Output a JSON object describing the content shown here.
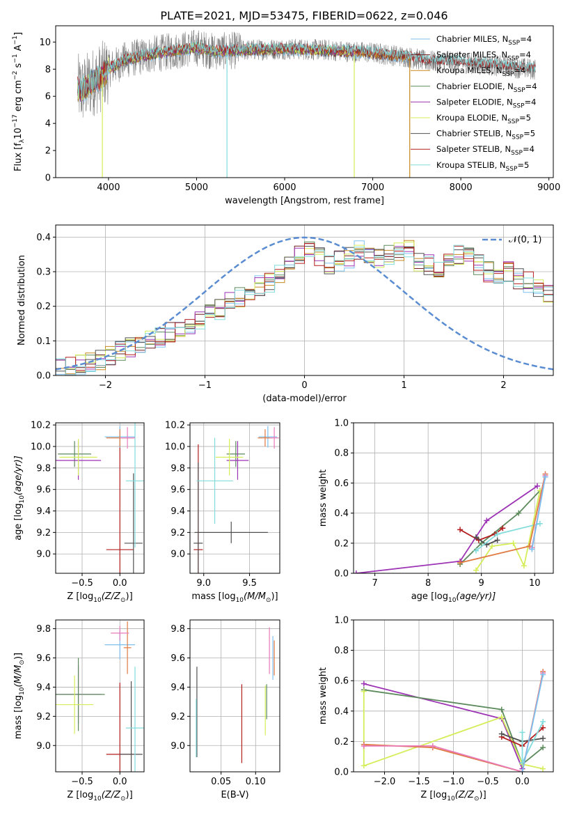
{
  "figure": {
    "title": "PLATE=2021, MJD=53475, FIBERID=0622, z=0.046"
  },
  "colors": {
    "Chabrier MILES": "#7bc0ef",
    "Salpeter MILES": "#6e1e1e",
    "Kroupa MILES": "#c8871e",
    "Chabrier ELODIE": "#5c8a5c",
    "Salpeter ELODIE": "#9c32b4",
    "Kroupa ELODIE": "#d4ee5a",
    "Chabrier STELIB": "#505050",
    "Salpeter STELIB": "#b41e1e",
    "Kroupa STELIB": "#82dcdc",
    "data": "#808080",
    "orange": "#e07a40",
    "pink": "#e87ab8",
    "normal": "#5a8cd2"
  },
  "chart_data": [
    {
      "id": "spectrum",
      "type": "line",
      "title": "PLATE=2021, MJD=53475, FIBERID=0622, z=0.046",
      "xlabel": "wavelength [Angstrom, rest frame]",
      "ylabel_parts": [
        "Flux [f",
        "λ",
        "10",
        "−17",
        " erg cm",
        "−2",
        " s",
        "−1",
        " A",
        "−1",
        "]"
      ],
      "xlim": [
        3400,
        9050
      ],
      "ylim": [
        0,
        11.2
      ],
      "xticks": [
        4000,
        5000,
        6000,
        7000,
        8000,
        9000
      ],
      "yticks": [
        0,
        2,
        4,
        6,
        8,
        10
      ],
      "grid": false,
      "legend_position": "upper-right",
      "legend": [
        {
          "label": "Chabrier MILES, N",
          "sub": "SSP",
          "suffix": "=4",
          "color_key": "Chabrier MILES"
        },
        {
          "label": "Salpeter MILES, N",
          "sub": "SSP",
          "suffix": "=4",
          "color_key": "Salpeter MILES"
        },
        {
          "label": "Kroupa MILES, N",
          "sub": "SSP",
          "suffix": "=4",
          "color_key": "Kroupa MILES"
        },
        {
          "label": "Chabrier ELODIE, N",
          "sub": "SSP",
          "suffix": "=4",
          "color_key": "Chabrier ELODIE"
        },
        {
          "label": "Salpeter ELODIE, N",
          "sub": "SSP",
          "suffix": "=4",
          "color_key": "Salpeter ELODIE"
        },
        {
          "label": "Kroupa ELODIE, N",
          "sub": "SSP",
          "suffix": "=5",
          "color_key": "Kroupa ELODIE"
        },
        {
          "label": "Chabrier STELIB, N",
          "sub": "SSP",
          "suffix": "=5",
          "color_key": "Chabrier STELIB"
        },
        {
          "label": "Salpeter STELIB, N",
          "sub": "SSP",
          "suffix": "=4",
          "color_key": "Salpeter STELIB"
        },
        {
          "label": "Kroupa STELIB, N",
          "sub": "SSP",
          "suffix": "=5",
          "color_key": "Kroupa STELIB"
        }
      ],
      "continuum": [
        [
          3650,
          6.6
        ],
        [
          3700,
          6.4
        ],
        [
          3800,
          7.0
        ],
        [
          3900,
          7.3
        ],
        [
          4000,
          8.0
        ],
        [
          4200,
          8.7
        ],
        [
          4500,
          9.1
        ],
        [
          4800,
          9.4
        ],
        [
          5000,
          9.6
        ],
        [
          5200,
          9.3
        ],
        [
          5500,
          9.4
        ],
        [
          6000,
          9.5
        ],
        [
          6500,
          9.4
        ],
        [
          7000,
          9.2
        ],
        [
          7400,
          8.9
        ],
        [
          7600,
          8.6
        ],
        [
          8000,
          8.5
        ],
        [
          8500,
          8.2
        ],
        [
          8800,
          8.0
        ]
      ],
      "data_xrange": [
        3650,
        8850
      ],
      "model_xranges": {
        "MILES": [
          3650,
          7420
        ],
        "ELODIE": [
          3650,
          6800
        ],
        "STELIB": [
          3650,
          8850
        ]
      },
      "dips": [
        {
          "x": 3930,
          "y": 0.0,
          "color_key": "Kroupa ELODIE"
        },
        {
          "x": 5345,
          "y": 0.0,
          "color_key": "Kroupa STELIB"
        },
        {
          "x": 6790,
          "y": 0.0,
          "color_key": "Kroupa ELODIE"
        },
        {
          "x": 7420,
          "y": 0.0,
          "color_key": "Kroupa MILES"
        }
      ]
    },
    {
      "id": "residuals",
      "type": "histogram",
      "xlabel": "(data-model)/error",
      "ylabel": "Normed distribution",
      "xlim": [
        -2.5,
        2.5
      ],
      "ylim": [
        0,
        0.435
      ],
      "xticks": [
        -2,
        -1,
        0,
        1,
        2
      ],
      "yticks": [
        0.0,
        0.1,
        0.2,
        0.3,
        0.4
      ],
      "grid": true,
      "legend_position": "upper-right",
      "normal_label": "𝒩(0, 1)",
      "bin_width": 0.1,
      "bins_start": -2.5,
      "reference_bins": [
        0.02,
        0.025,
        0.03,
        0.035,
        0.045,
        0.06,
        0.07,
        0.08,
        0.09,
        0.1,
        0.11,
        0.125,
        0.14,
        0.15,
        0.16,
        0.175,
        0.19,
        0.21,
        0.225,
        0.24,
        0.26,
        0.27,
        0.29,
        0.33,
        0.35,
        0.36,
        0.34,
        0.32,
        0.33,
        0.34,
        0.36,
        0.35,
        0.34,
        0.35,
        0.36,
        0.37,
        0.33,
        0.32,
        0.31,
        0.33,
        0.35,
        0.34,
        0.32,
        0.3,
        0.29,
        0.3,
        0.28,
        0.27,
        0.25,
        0.24,
        0.22,
        0.2,
        0.185,
        0.17,
        0.16,
        0.15,
        0.14,
        0.12,
        0.11,
        0.1,
        0.09,
        0.08,
        0.075,
        0.065,
        0.055,
        0.05,
        0.045,
        0.04,
        0.035,
        0.03,
        0.025,
        0.02
      ],
      "series": [
        {
          "color_key": "Chabrier MILES"
        },
        {
          "color_key": "Salpeter MILES"
        },
        {
          "color_key": "Kroupa MILES"
        },
        {
          "color_key": "Chabrier ELODIE"
        },
        {
          "color_key": "Salpeter ELODIE"
        },
        {
          "color_key": "Kroupa ELODIE"
        },
        {
          "color_key": "Chabrier STELIB"
        },
        {
          "color_key": "Salpeter STELIB"
        },
        {
          "color_key": "Kroupa STELIB"
        }
      ]
    },
    {
      "id": "age_vs_Z",
      "type": "errorbar",
      "xlabel_parts": [
        "Z [log",
        "10",
        "(Z/Z",
        "⊙",
        ")]"
      ],
      "ylabel_parts": [
        "age  [log",
        "10",
        "(age/yr)]"
      ],
      "xlim": [
        -0.85,
        0.32
      ],
      "ylim": [
        8.82,
        10.22
      ],
      "xticks": [
        -0.5,
        0.0
      ],
      "yticks": [
        9.0,
        9.2,
        9.4,
        9.6,
        9.8,
        10.0,
        10.2
      ],
      "grid": true,
      "points": [
        {
          "x": -0.6,
          "y": 9.93,
          "xerr": 0.22,
          "yerr": 0.12,
          "color_key": "Chabrier ELODIE"
        },
        {
          "x": -0.55,
          "y": 9.87,
          "xerr": 0.3,
          "yerr": 0.18,
          "color_key": "Salpeter ELODIE"
        },
        {
          "x": -0.55,
          "y": 9.9,
          "xerr": 0.25,
          "yerr": 0.17,
          "color_key": "Kroupa ELODIE"
        },
        {
          "x": 0.0,
          "y": 9.04,
          "xerr": 0.18,
          "yerr": 0.98,
          "color_key": "Salpeter STELIB"
        },
        {
          "x": 0.18,
          "y": 9.1,
          "xerr": 0.12,
          "yerr": 0.65,
          "color_key": "Chabrier STELIB"
        },
        {
          "x": 0.2,
          "y": 9.68,
          "xerr": 0.12,
          "yerr": 0.62,
          "color_key": "Kroupa STELIB"
        },
        {
          "x": 0.0,
          "y": 10.09,
          "xerr": 0.2,
          "yerr": 0.1,
          "color_key": "Chabrier MILES"
        },
        {
          "x": 0.0,
          "y": 10.08,
          "xerr": 0.18,
          "yerr": 0.08,
          "color_key": "orange"
        },
        {
          "x": 0.1,
          "y": 10.08,
          "xerr": 0.1,
          "yerr": 0.1,
          "color_key": "pink"
        }
      ]
    },
    {
      "id": "age_vs_mass",
      "type": "errorbar",
      "xlabel_parts": [
        "mass [log",
        "10",
        "(M/M",
        "⊙",
        ")]"
      ],
      "xlim": [
        8.85,
        9.83
      ],
      "ylim": [
        8.82,
        10.22
      ],
      "xticks": [
        9.0,
        9.5
      ],
      "yticks": [
        9.0,
        9.2,
        9.4,
        9.6,
        9.8,
        10.0,
        10.2
      ],
      "grid": true,
      "points": [
        {
          "x": 9.35,
          "y": 9.93,
          "xerr": 0.1,
          "yerr": 0.12,
          "color_key": "Chabrier ELODIE"
        },
        {
          "x": 9.37,
          "y": 9.87,
          "xerr": 0.12,
          "yerr": 0.18,
          "color_key": "Salpeter ELODIE"
        },
        {
          "x": 9.28,
          "y": 9.9,
          "xerr": 0.15,
          "yerr": 0.17,
          "color_key": "Kroupa ELODIE"
        },
        {
          "x": 8.94,
          "y": 9.04,
          "xerr": 0.05,
          "yerr": 0.98,
          "color_key": "Salpeter STELIB"
        },
        {
          "x": 8.94,
          "y": 9.1,
          "xerr": 0.05,
          "yerr": 0.75,
          "color_key": "Chabrier STELIB"
        },
        {
          "x": 9.12,
          "y": 9.68,
          "xerr": 0.2,
          "yerr": 0.4,
          "color_key": "Kroupa STELIB"
        },
        {
          "x": 9.7,
          "y": 10.09,
          "xerr": 0.1,
          "yerr": 0.1,
          "color_key": "Chabrier MILES"
        },
        {
          "x": 9.67,
          "y": 10.08,
          "xerr": 0.08,
          "yerr": 0.08,
          "color_key": "orange"
        },
        {
          "x": 9.77,
          "y": 10.08,
          "xerr": 0.05,
          "yerr": 0.1,
          "color_key": "pink"
        },
        {
          "x": 9.3,
          "y": 9.2,
          "xerr": 0.4,
          "yerr": 0.1,
          "color_key": "Chabrier STELIB"
        }
      ]
    },
    {
      "id": "massweight_vs_age",
      "type": "line",
      "xlabel_parts": [
        "age  [log",
        "10",
        "(age/yr)]"
      ],
      "ylabel": "mass weight",
      "xlim": [
        6.6,
        10.35
      ],
      "ylim": [
        0,
        1.0
      ],
      "xticks": [
        7,
        8,
        9,
        10
      ],
      "yticks": [
        0.0,
        0.2,
        0.4,
        0.6,
        0.8,
        1.0
      ],
      "grid": true,
      "series": [
        {
          "color_key": "Salpeter ELODIE",
          "x": [
            6.65,
            8.6,
            9.1,
            10.05
          ],
          "y": [
            0.0,
            0.08,
            0.35,
            0.58
          ]
        },
        {
          "color_key": "Chabrier ELODIE",
          "x": [
            8.6,
            9.0,
            9.7,
            10.1
          ],
          "y": [
            0.06,
            0.2,
            0.4,
            0.55
          ]
        },
        {
          "color_key": "Kroupa ELODIE",
          "x": [
            8.9,
            9.2,
            9.6,
            9.8,
            10.1
          ],
          "y": [
            0.02,
            0.18,
            0.2,
            0.05,
            0.55
          ]
        },
        {
          "color_key": "Salpeter STELIB",
          "x": [
            8.6,
            8.95,
            9.25,
            9.4
          ],
          "y": [
            0.29,
            0.22,
            0.26,
            0.3
          ]
        },
        {
          "color_key": "Chabrier STELIB",
          "x": [
            8.9,
            9.1,
            9.3
          ],
          "y": [
            0.24,
            0.19,
            0.22
          ]
        },
        {
          "color_key": "Kroupa STELIB",
          "x": [
            8.9,
            9.3,
            10.1
          ],
          "y": [
            0.15,
            0.26,
            0.33
          ]
        },
        {
          "color_key": "orange",
          "x": [
            8.6,
            9.9,
            10.2
          ],
          "y": [
            0.07,
            0.18,
            0.66
          ]
        },
        {
          "color_key": "pink",
          "x": [
            9.95,
            10.2
          ],
          "y": [
            0.17,
            0.65
          ]
        },
        {
          "color_key": "Chabrier MILES",
          "x": [
            9.95,
            10.2
          ],
          "y": [
            0.16,
            0.64
          ]
        }
      ]
    },
    {
      "id": "mass_vs_Z",
      "type": "errorbar",
      "xlabel_parts": [
        "Z [log",
        "10",
        "(Z/Z",
        "⊙",
        ")]"
      ],
      "ylabel_parts": [
        "mass [log",
        "10",
        "(M/M",
        "⊙",
        ")]"
      ],
      "xlim": [
        -0.85,
        0.32
      ],
      "ylim": [
        8.82,
        9.86
      ],
      "xticks": [
        -0.5,
        0.0
      ],
      "yticks": [
        9.0,
        9.2,
        9.4,
        9.6,
        9.8
      ],
      "grid": true,
      "points": [
        {
          "x": -0.55,
          "y": 9.35,
          "xerr": 0.3,
          "yerr": 0.2,
          "color_key": "Salpeter ELODIE"
        },
        {
          "x": -0.55,
          "y": 9.35,
          "xerr": 0.35,
          "yerr": 0.25,
          "color_key": "Chabrier ELODIE"
        },
        {
          "x": -0.6,
          "y": 9.28,
          "xerr": 0.25,
          "yerr": 0.2,
          "color_key": "Kroupa ELODIE"
        },
        {
          "x": 0.0,
          "y": 8.94,
          "xerr": 0.18,
          "yerr": 0.49,
          "color_key": "Salpeter STELIB"
        },
        {
          "x": 0.15,
          "y": 8.94,
          "xerr": 0.15,
          "yerr": 0.5,
          "color_key": "Chabrier STELIB"
        },
        {
          "x": 0.2,
          "y": 9.12,
          "xerr": 0.12,
          "yerr": 0.42,
          "color_key": "Kroupa STELIB"
        },
        {
          "x": 0.0,
          "y": 9.69,
          "xerr": 0.2,
          "yerr": 0.1,
          "color_key": "Chabrier MILES"
        },
        {
          "x": 0.1,
          "y": 9.67,
          "xerr": 0.05,
          "yerr": 0.18,
          "color_key": "orange"
        },
        {
          "x": 0.0,
          "y": 9.77,
          "xerr": 0.12,
          "yerr": 0.05,
          "color_key": "pink"
        }
      ]
    },
    {
      "id": "mass_vs_EBV",
      "type": "errorbar",
      "xlabel": "E(B-V)",
      "xlim": [
        0.005,
        0.135
      ],
      "ylim": [
        8.82,
        9.86
      ],
      "xticks": [
        0.05,
        0.1
      ],
      "yticks": [
        9.0,
        9.2,
        9.4,
        9.6,
        9.8
      ],
      "grid": true,
      "points": [
        {
          "x": 0.015,
          "y": 9.23,
          "xerr": 0.0,
          "yerr": 0.31,
          "color_key": "Chabrier STELIB"
        },
        {
          "x": 0.014,
          "y": 9.12,
          "xerr": 0.0,
          "yerr": 0.2,
          "color_key": "Kroupa STELIB"
        },
        {
          "x": 0.08,
          "y": 9.15,
          "xerr": 0.0,
          "yerr": 0.27,
          "color_key": "Salpeter STELIB"
        },
        {
          "x": 0.114,
          "y": 9.24,
          "xerr": 0.0,
          "yerr": 0.17,
          "color_key": "Kroupa ELODIE"
        },
        {
          "x": 0.116,
          "y": 9.3,
          "xerr": 0.0,
          "yerr": 0.12,
          "color_key": "Chabrier ELODIE"
        },
        {
          "x": 0.12,
          "y": 9.65,
          "xerr": 0.0,
          "yerr": 0.16,
          "color_key": "pink"
        },
        {
          "x": 0.125,
          "y": 9.6,
          "xerr": 0.0,
          "yerr": 0.15,
          "color_key": "Chabrier MILES"
        },
        {
          "x": 0.127,
          "y": 9.6,
          "xerr": 0.0,
          "yerr": 0.12,
          "color_key": "orange"
        }
      ]
    },
    {
      "id": "massweight_vs_Z",
      "type": "line",
      "xlabel_parts": [
        "Z [log",
        "10",
        "(Z/Z",
        "⊙",
        ")]"
      ],
      "ylabel": "mass weight",
      "xlim": [
        -2.45,
        0.45
      ],
      "ylim": [
        0,
        1.0
      ],
      "xticks": [
        -2.0,
        -1.5,
        -1.0,
        -0.5,
        0.0
      ],
      "yticks": [
        0.0,
        0.2,
        0.4,
        0.6,
        0.8,
        1.0
      ],
      "grid": true,
      "series": [
        {
          "color_key": "Salpeter ELODIE",
          "x": [
            -2.3,
            -0.3,
            0.0
          ],
          "y": [
            0.58,
            0.35,
            0.02
          ]
        },
        {
          "color_key": "Chabrier ELODIE",
          "x": [
            -2.3,
            -0.3,
            0.0,
            0.3
          ],
          "y": [
            0.54,
            0.41,
            0.05,
            0.16
          ]
        },
        {
          "color_key": "Kroupa ELODIE",
          "x": [
            -2.3,
            -2.3,
            -0.3,
            0.0,
            0.3
          ],
          "y": [
            0.53,
            0.04,
            0.36,
            0.05,
            0.02
          ]
        },
        {
          "color_key": "Salpeter STELIB",
          "x": [
            -0.3,
            0.0,
            0.3
          ],
          "y": [
            0.23,
            0.17,
            0.29
          ]
        },
        {
          "color_key": "Chabrier STELIB",
          "x": [
            -0.3,
            0.0,
            0.3
          ],
          "y": [
            0.25,
            0.2,
            0.22
          ]
        },
        {
          "color_key": "Kroupa STELIB",
          "x": [
            0.0,
            0.0,
            0.3
          ],
          "y": [
            0.26,
            0.06,
            0.33
          ]
        },
        {
          "color_key": "orange",
          "x": [
            -2.3,
            -1.3,
            0.0,
            0.3
          ],
          "y": [
            0.18,
            0.16,
            0.0,
            0.66
          ]
        },
        {
          "color_key": "pink",
          "x": [
            -2.3,
            -1.3,
            0.0,
            0.3
          ],
          "y": [
            0.17,
            0.17,
            0.0,
            0.65
          ]
        },
        {
          "color_key": "Chabrier MILES",
          "x": [
            0.0,
            0.3
          ],
          "y": [
            0.0,
            0.64
          ]
        }
      ]
    }
  ]
}
